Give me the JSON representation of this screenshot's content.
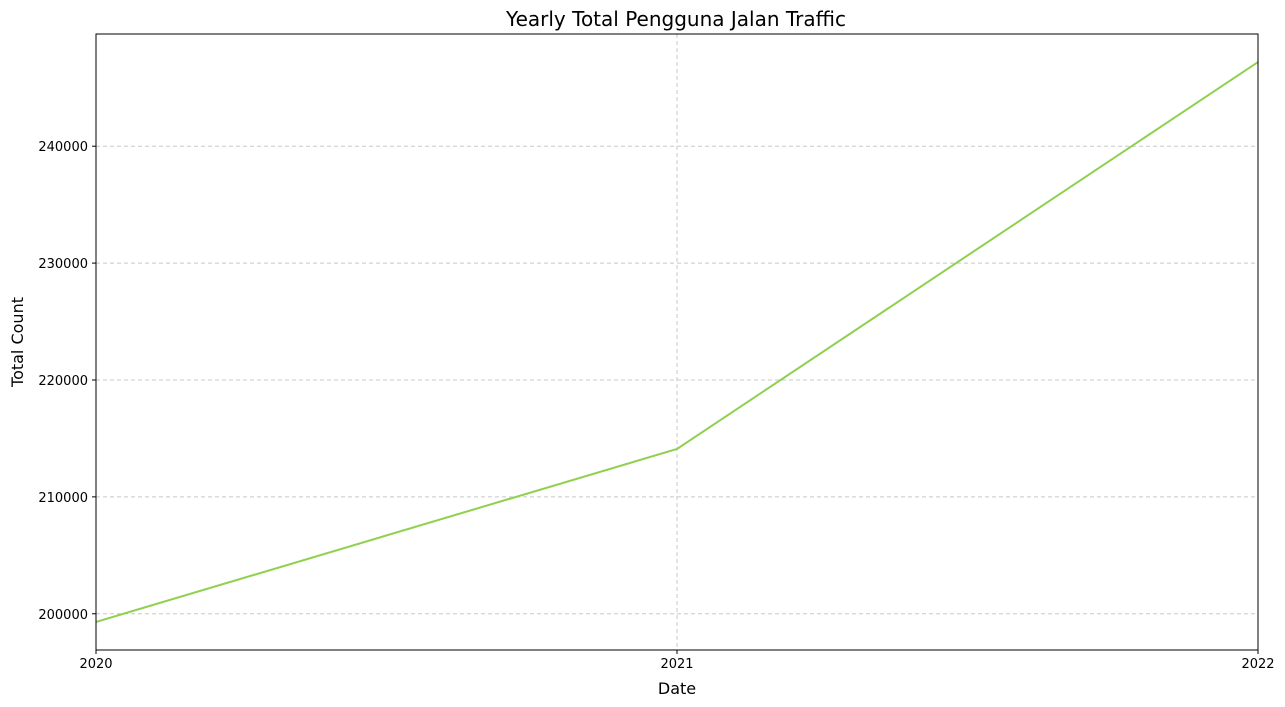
{
  "chart_data": {
    "type": "line",
    "title": "Yearly Total Pengguna Jalan Traffic",
    "xlabel": "Date",
    "ylabel": "Total Count",
    "x": [
      "2020",
      "2021",
      "2022"
    ],
    "series": [
      {
        "values": [
          199300,
          214100,
          247200
        ],
        "color": "#8fd14f"
      }
    ],
    "xlim": [
      2020,
      2022
    ],
    "ylim": [
      196900,
      249600
    ],
    "yticks": [
      200000,
      210000,
      220000,
      230000,
      240000
    ],
    "xticks": [
      "2020",
      "2021",
      "2022"
    ],
    "grid": true
  }
}
